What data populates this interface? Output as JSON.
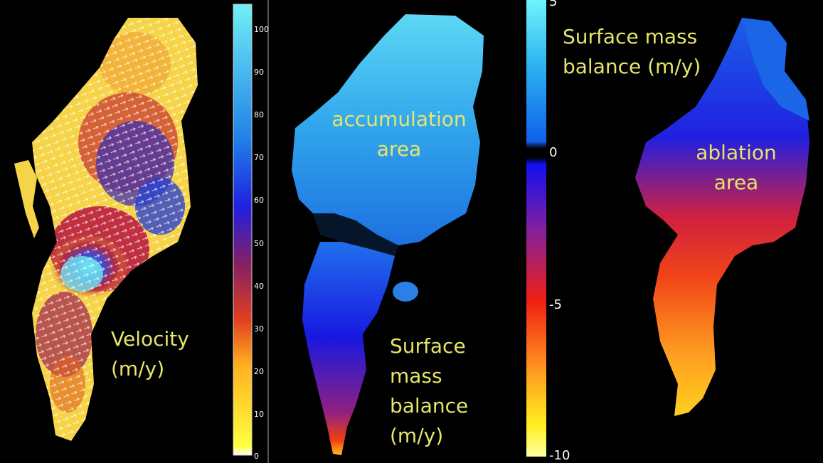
{
  "panels": {
    "velocity": {
      "label_lines": [
        "Velocity",
        "(m/y)"
      ],
      "colorbar_ticks": [
        "0",
        "10",
        "20",
        "30",
        "40",
        "50",
        "60",
        "70",
        "80",
        "90",
        "100"
      ]
    },
    "smb_model": {
      "area_label_lines": [
        "accumulation",
        "area"
      ],
      "label_lines": [
        "Surface",
        "mass",
        "balance",
        "(m/y)"
      ]
    },
    "smb_observed": {
      "title_lines": [
        "Surface mass",
        "balance (m/y)"
      ],
      "area_label_lines": [
        "ablation",
        "area"
      ],
      "colorbar_ticks": [
        "5",
        "0",
        "-5",
        "-10"
      ]
    }
  },
  "colors": {
    "label_text": "#e6e66a",
    "background": "#000000"
  }
}
